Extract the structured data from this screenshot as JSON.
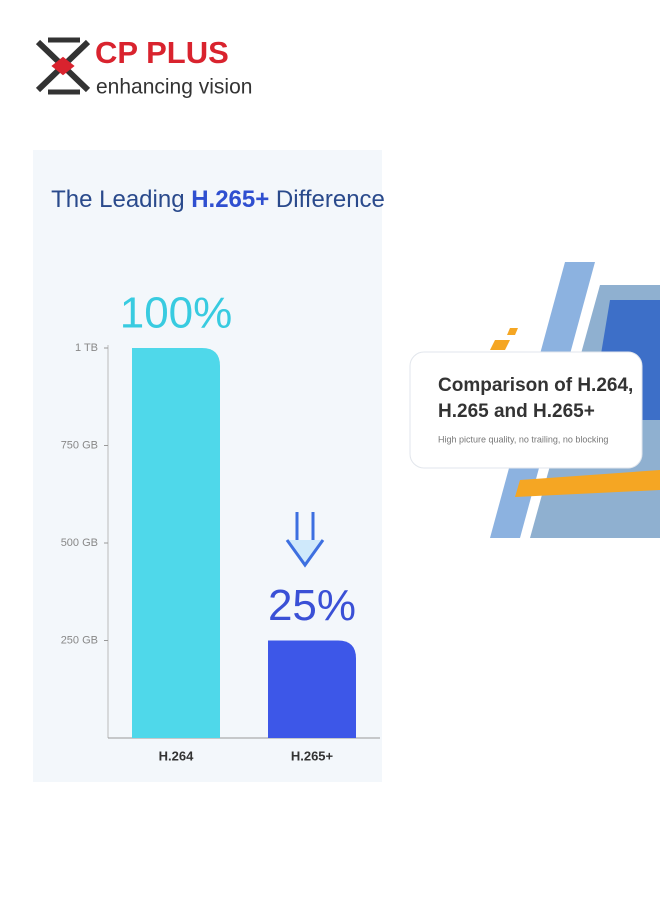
{
  "logo": {
    "brand": "CP PLUS",
    "tagline": "enhancing vision"
  },
  "chart_data": {
    "type": "bar",
    "title": [
      "The Leading ",
      "H.265+",
      " Difference"
    ],
    "categories": [
      "H.264",
      "H.265+"
    ],
    "series": [
      {
        "name": "Storage",
        "colors": [
          "#4fd8ea",
          "#3d57e8"
        ],
        "label_colors": [
          "#38cbe0",
          "#3a50d6"
        ],
        "values": [
          100,
          25
        ],
        "value_labels": [
          "100%",
          "25%"
        ]
      }
    ],
    "ylim": [
      0,
      100
    ],
    "yticks": [
      {
        "value": 25,
        "label": "250 GB"
      },
      {
        "value": 50,
        "label": "500 GB"
      },
      {
        "value": 75,
        "label": "750 GB"
      },
      {
        "value": 100,
        "label": "1 TB"
      }
    ],
    "grid": false
  },
  "banner": {
    "heading": [
      "Comparison of H.264,",
      "H.265 and H.265+"
    ],
    "subheading": "High picture quality, no trailing, no blocking"
  }
}
